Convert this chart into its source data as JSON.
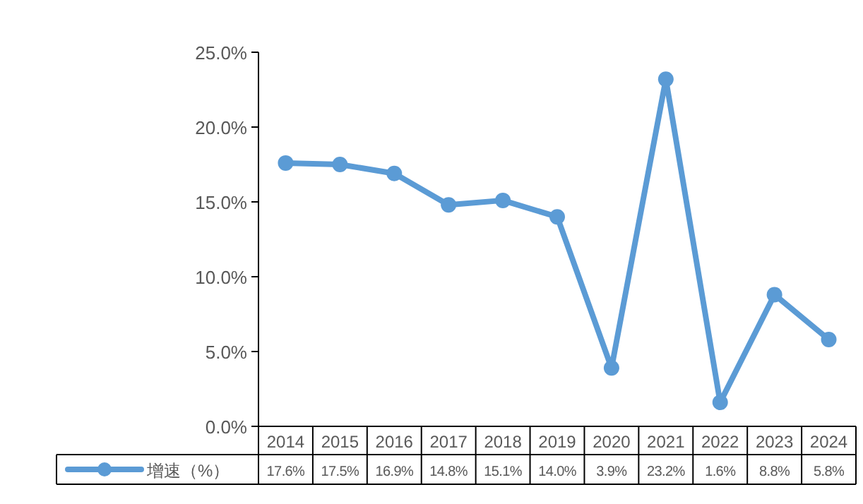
{
  "chart_data": {
    "type": "line",
    "categories": [
      "2014",
      "2015",
      "2016",
      "2017",
      "2018",
      "2019",
      "2020",
      "2021",
      "2022",
      "2023",
      "2024"
    ],
    "series": [
      {
        "name": "增速（%）",
        "color": "#5b9bd5",
        "values": [
          17.6,
          17.5,
          16.9,
          14.8,
          15.1,
          14.0,
          3.9,
          23.2,
          1.6,
          8.8,
          5.8
        ],
        "value_labels": [
          "17.6%",
          "17.5%",
          "16.9%",
          "14.8%",
          "15.1%",
          "14.0%",
          "3.9%",
          "23.2%",
          "1.6%",
          "8.8%",
          "5.8%"
        ]
      }
    ],
    "ylim": [
      0,
      25
    ],
    "yticks": [
      {
        "value": 0,
        "label": "0.0%"
      },
      {
        "value": 5,
        "label": "5.0%"
      },
      {
        "value": 10,
        "label": "10.0%"
      },
      {
        "value": 15,
        "label": "15.0%"
      },
      {
        "value": 20,
        "label": "20.0%"
      },
      {
        "value": 25,
        "label": "25.0%"
      }
    ],
    "grid": false,
    "legend": "bottom",
    "marker": "circle",
    "line_style": "solid"
  }
}
